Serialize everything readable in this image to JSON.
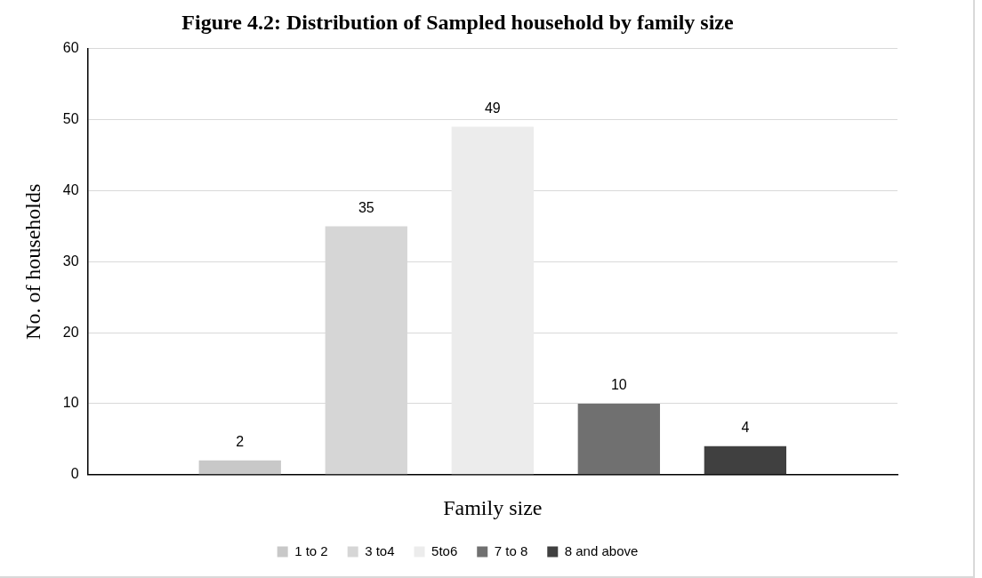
{
  "chart_data": {
    "type": "bar",
    "title": "Figure 4.2: Distribution of Sampled household by family size",
    "xlabel": "Family size",
    "ylabel": "No. of households",
    "categories": [
      null
    ],
    "series": [
      {
        "name": "1 to 2",
        "color": "#c8c8c8",
        "values": [
          2
        ]
      },
      {
        "name": "3 to4",
        "color": "#d6d6d6",
        "values": [
          35
        ]
      },
      {
        "name": "5to6",
        "color": "#ececec",
        "values": [
          49
        ]
      },
      {
        "name": "7 to 8",
        "color": "#707070",
        "values": [
          10
        ]
      },
      {
        "name": "8 and above",
        "color": "#404040",
        "values": [
          4
        ]
      }
    ],
    "ylim": [
      0,
      60
    ],
    "yticks": [
      0,
      10,
      20,
      30,
      40,
      50,
      60
    ],
    "grid": "y",
    "legend": "bottom",
    "data_labels": true
  }
}
